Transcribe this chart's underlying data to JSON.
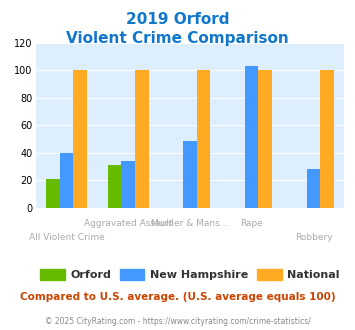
{
  "title_line1": "2019 Orford",
  "title_line2": "Violent Crime Comparison",
  "categories": [
    "All Violent Crime",
    "Aggravated Assault",
    "Murder & Mans...",
    "Rape",
    "Robbery"
  ],
  "orford": [
    21,
    31,
    0,
    0,
    0
  ],
  "new_hampshire": [
    40,
    34,
    49,
    103,
    28
  ],
  "national": [
    100,
    100,
    100,
    100,
    100
  ],
  "orford_color": "#66bb00",
  "nh_color": "#4499ff",
  "national_color": "#ffaa22",
  "ylim": [
    0,
    120
  ],
  "yticks": [
    0,
    20,
    40,
    60,
    80,
    100,
    120
  ],
  "bg_color": "#ddeeff",
  "title_color": "#1177cc",
  "legend_labels": [
    "Orford",
    "New Hampshire",
    "National"
  ],
  "footer_text": "Compared to U.S. average. (U.S. average equals 100)",
  "credit_text": "© 2025 CityRating.com - https://www.cityrating.com/crime-statistics/",
  "footer_color": "#cc4400",
  "credit_color": "#888888",
  "label_color": "#aaaaaa",
  "bar_width": 0.22
}
